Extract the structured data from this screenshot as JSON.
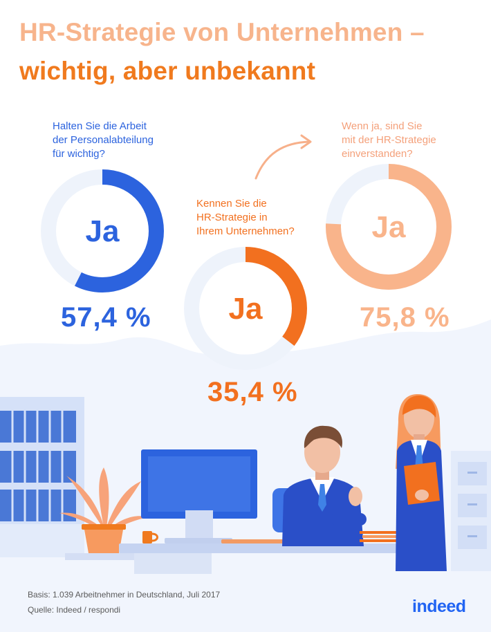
{
  "title": {
    "line1": "HR-Strategie von Unternehmen –",
    "line2": "wichtig, aber unbekannt"
  },
  "colors": {
    "blue": "#2c63de",
    "orange": "#f2701f",
    "peach": "#f9b48b",
    "track": "#eef3fb"
  },
  "chart_data": [
    {
      "type": "pie",
      "question": "Halten Sie die Arbeit\nder Personalabteilung\nfür wichtig?",
      "center_label": "Ja",
      "value_label": "57,4 %",
      "values": [
        57.4,
        42.6
      ],
      "categories": [
        "Ja",
        ""
      ]
    },
    {
      "type": "pie",
      "question": "Kennen Sie die\nHR-Strategie in\nIhrem Unternehmen?",
      "center_label": "Ja",
      "value_label": "35,4 %",
      "values": [
        35.4,
        64.6
      ],
      "categories": [
        "Ja",
        ""
      ]
    },
    {
      "type": "pie",
      "question": "Wenn ja, sind Sie\nmit der HR-Strategie\neinverstanden?",
      "center_label": "Ja",
      "value_label": "75,8 %",
      "values": [
        75.8,
        24.2
      ],
      "categories": [
        "Ja",
        ""
      ]
    }
  ],
  "footer": {
    "basis": "Basis: 1.039 Arbeitnehmer in Deutschland, Juli 2017",
    "source": "Quelle: Indeed / respondi"
  },
  "logo": {
    "text": "indeed"
  },
  "icons": {
    "arrow": "curved-arrow-icon"
  }
}
